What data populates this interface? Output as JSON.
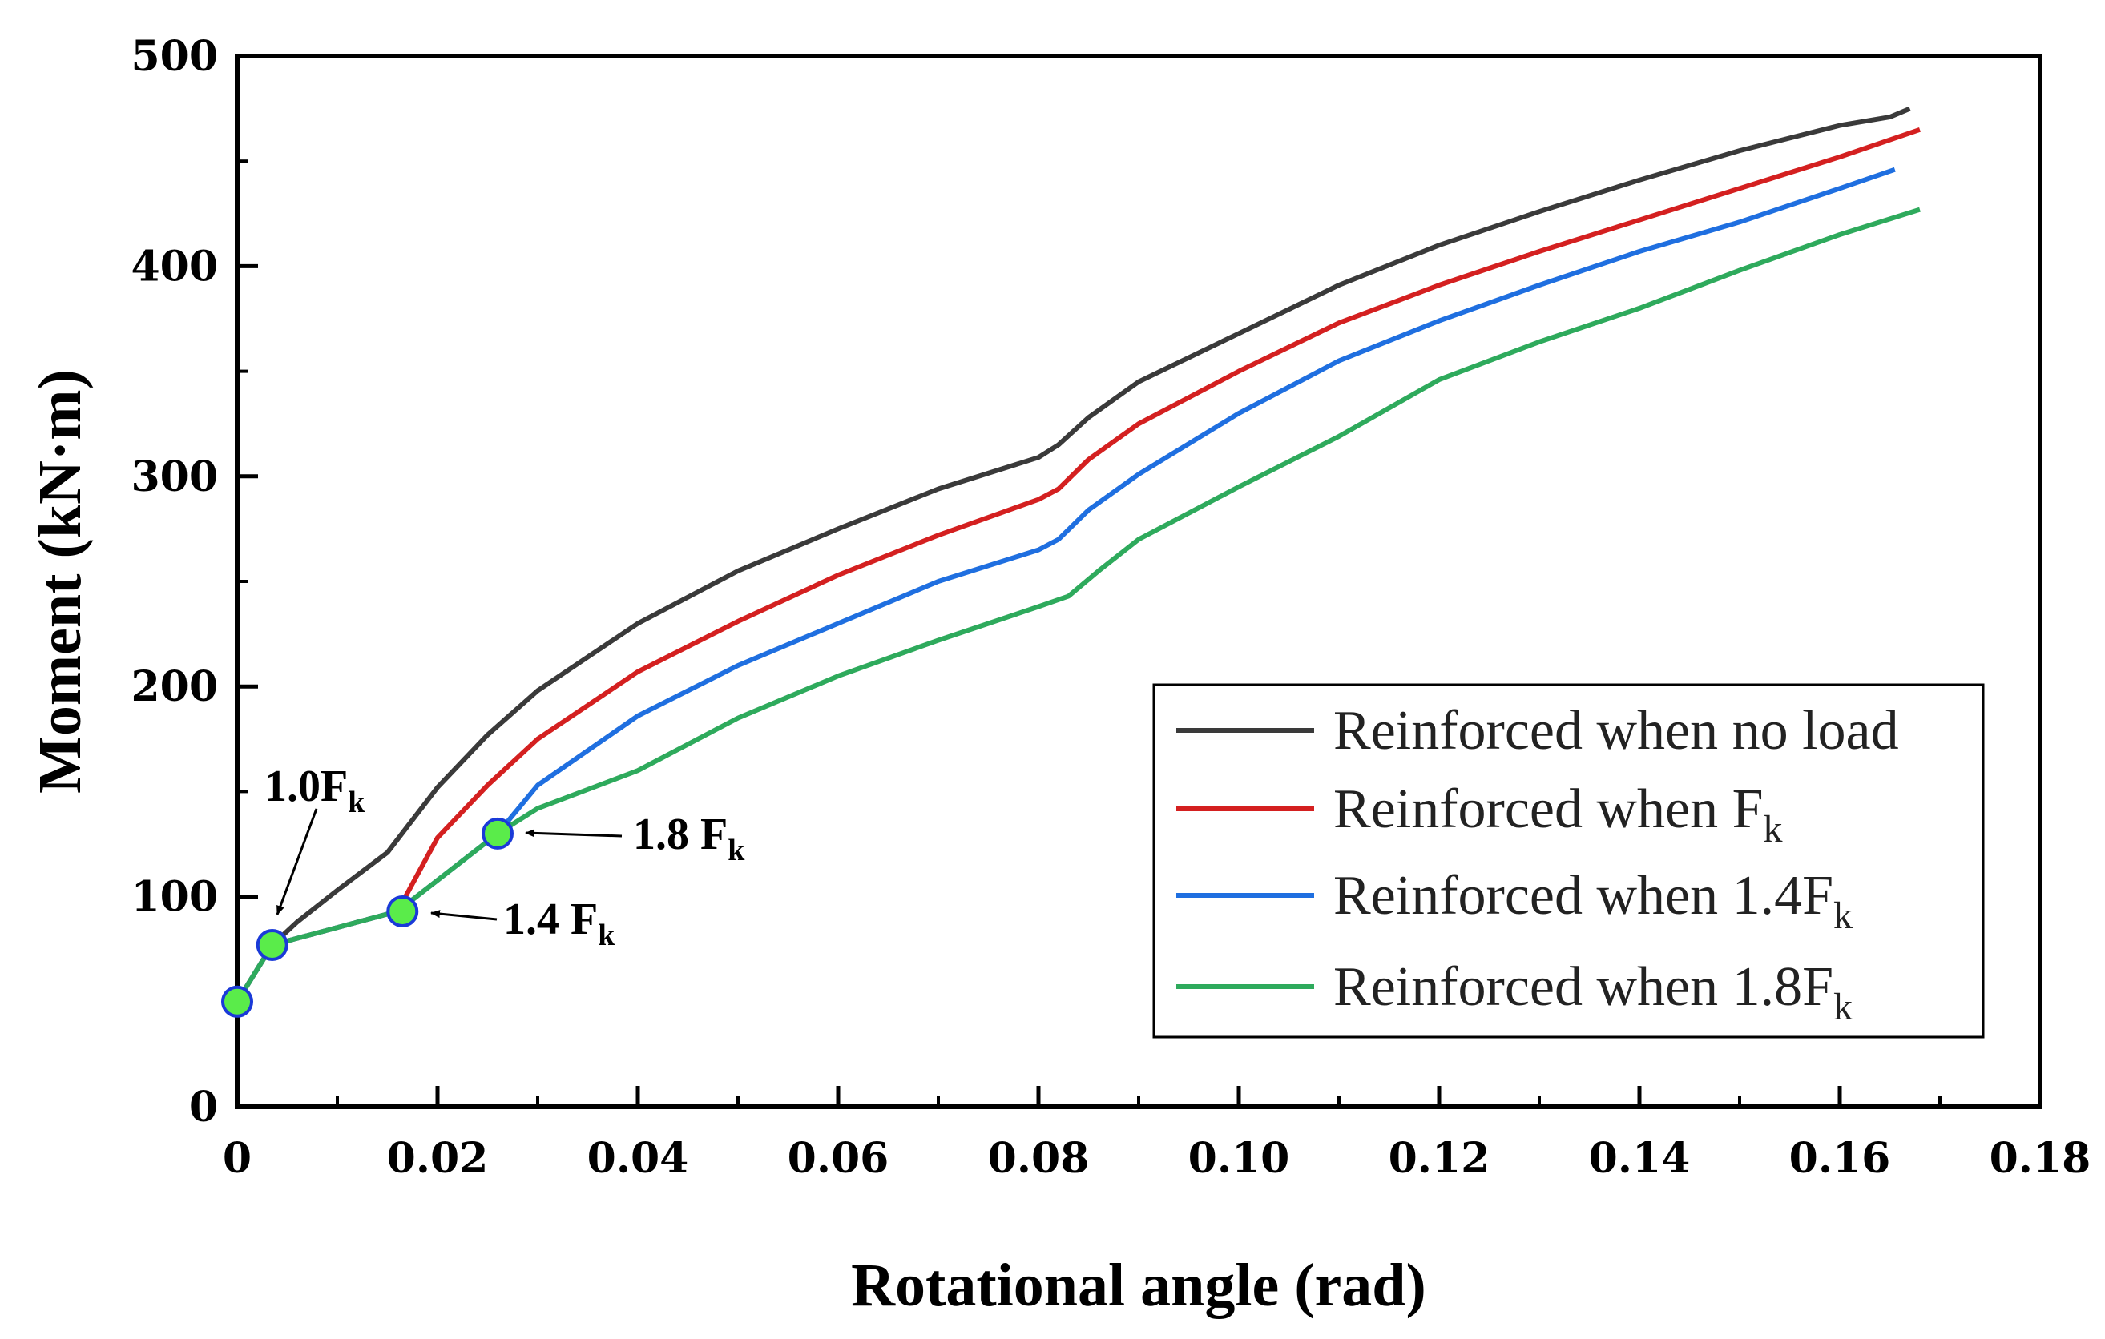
{
  "chart_data": {
    "type": "line",
    "xlabel": "Rotational angle (rad)",
    "ylabel": "Moment (kN·m)",
    "xlim": [
      0,
      0.18
    ],
    "ylim": [
      0,
      500
    ],
    "xticks": [
      "0",
      "0.02",
      "0.04",
      "0.06",
      "0.08",
      "0.10",
      "0.12",
      "0.14",
      "0.16",
      "0.18"
    ],
    "yticks": [
      "0",
      "100",
      "200",
      "300",
      "400",
      "500"
    ],
    "grid": false,
    "legend_position": "bottom-right",
    "series": [
      {
        "name": "Reinforced when no load",
        "color": "#3a3a3a",
        "x": [
          0,
          0.0035,
          0.006,
          0.01,
          0.015,
          0.02,
          0.025,
          0.03,
          0.04,
          0.05,
          0.06,
          0.07,
          0.08,
          0.082,
          0.085,
          0.09,
          0.1,
          0.11,
          0.12,
          0.13,
          0.14,
          0.15,
          0.16,
          0.165,
          0.167
        ],
        "y": [
          50,
          77,
          88,
          103,
          121,
          152,
          177,
          198,
          230,
          255,
          275,
          294,
          309,
          315,
          328,
          345,
          368,
          391,
          410,
          426,
          441,
          455,
          467,
          471,
          475
        ]
      },
      {
        "name": "Reinforced when F",
        "name_sub": "k",
        "color": "#d42020",
        "x": [
          0,
          0.0035,
          0.016,
          0.02,
          0.025,
          0.03,
          0.04,
          0.05,
          0.06,
          0.07,
          0.08,
          0.082,
          0.085,
          0.09,
          0.1,
          0.11,
          0.12,
          0.13,
          0.14,
          0.15,
          0.16,
          0.168
        ],
        "y": [
          50,
          77,
          93,
          128,
          153,
          175,
          207,
          231,
          253,
          272,
          289,
          294,
          308,
          325,
          350,
          373,
          391,
          407,
          422,
          437,
          452,
          465
        ]
      },
      {
        "name": "Reinforced when 1.4F",
        "name_sub": "k",
        "color": "#1f6fe0",
        "x": [
          0,
          0.0035,
          0.016,
          0.026,
          0.03,
          0.04,
          0.05,
          0.06,
          0.07,
          0.08,
          0.082,
          0.085,
          0.09,
          0.1,
          0.11,
          0.12,
          0.13,
          0.14,
          0.15,
          0.16,
          0.1655
        ],
        "y": [
          50,
          77,
          93,
          130,
          153,
          186,
          210,
          230,
          250,
          265,
          270,
          284,
          301,
          330,
          355,
          374,
          391,
          407,
          421,
          437,
          446
        ]
      },
      {
        "name": "Reinforced when 1.8F",
        "name_sub": "k",
        "color": "#2eaa5c",
        "x": [
          0,
          0.0035,
          0.016,
          0.026,
          0.03,
          0.04,
          0.05,
          0.06,
          0.07,
          0.08,
          0.083,
          0.086,
          0.09,
          0.1,
          0.11,
          0.12,
          0.13,
          0.14,
          0.15,
          0.16,
          0.168
        ],
        "y": [
          50,
          77,
          93,
          130,
          142,
          160,
          185,
          205,
          222,
          238,
          243,
          255,
          270,
          295,
          319,
          346,
          364,
          380,
          398,
          415,
          427
        ]
      }
    ],
    "markers": [
      {
        "x": 0.0,
        "y": 50
      },
      {
        "x": 0.0035,
        "y": 77
      },
      {
        "x": 0.0165,
        "y": 93
      },
      {
        "x": 0.026,
        "y": 130
      }
    ],
    "marker_fill": "#5aec4a",
    "marker_stroke": "#1a3ad8",
    "annotations": [
      {
        "text": "1.0F",
        "sub": "k",
        "x": 0.0035,
        "y": 77
      },
      {
        "text": "1.4 F",
        "sub": "k",
        "x": 0.0165,
        "y": 93
      },
      {
        "text": "1.8 F",
        "sub": "k",
        "x": 0.026,
        "y": 130
      }
    ]
  }
}
